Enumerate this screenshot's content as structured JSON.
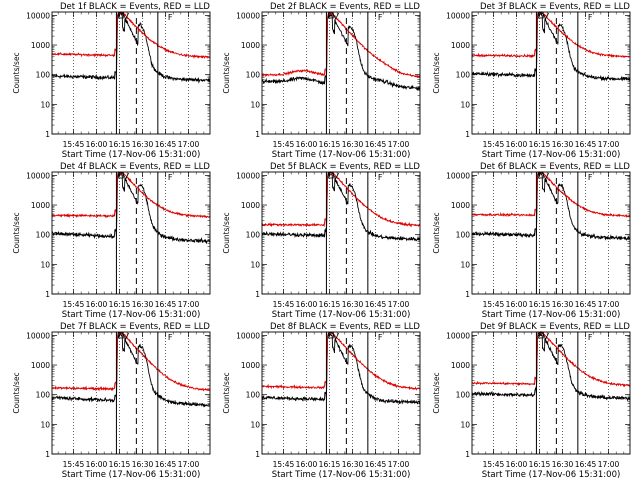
{
  "chart_data": {
    "type": "line",
    "common": {
      "xlabel": "Start Time (17-Nov-06 15:31:00)",
      "ylabel": "Counts/sec",
      "x_ticks": [
        "15:45",
        "16:00",
        "16:15",
        "16:30",
        "16:45",
        "17:00"
      ],
      "y_ticks": [
        "1",
        "10",
        "100",
        "1000",
        "10000"
      ],
      "xlim": [
        "15:31",
        "17:14"
      ],
      "ylim": [
        1,
        13000
      ],
      "yscale": "log",
      "grid": "dotted vertical lines at x ticks",
      "markers": {
        "solid_lines": [
          "16:13",
          "16:40"
        ],
        "dashed_line": "16:26",
        "annotation": "F"
      },
      "colors": {
        "events": "#000000",
        "lld": "#dd0000"
      }
    },
    "panels": [
      {
        "title": "Det 1f  BLACK = Events, RED = LLD",
        "series": [
          {
            "name": "Events",
            "baseline_start": 90,
            "baseline_end": 65,
            "peak": 11000,
            "bump": 0
          },
          {
            "name": "LLD",
            "baseline_start": 500,
            "baseline_end": 380,
            "peak": 12500,
            "bump": 0
          }
        ]
      },
      {
        "title": "Det 2f  BLACK = Events, RED = LLD",
        "series": [
          {
            "name": "Events",
            "baseline_start": 60,
            "baseline_end": 35,
            "peak": 10000,
            "bump": 0.45
          },
          {
            "name": "LLD",
            "baseline_start": 100,
            "baseline_end": 80,
            "peak": 11500,
            "bump": 0.45
          }
        ]
      },
      {
        "title": "Det 3f  BLACK = Events, RED = LLD",
        "series": [
          {
            "name": "Events",
            "baseline_start": 110,
            "baseline_end": 70,
            "peak": 11000,
            "bump": 0
          },
          {
            "name": "LLD",
            "baseline_start": 450,
            "baseline_end": 400,
            "peak": 12500,
            "bump": 0
          }
        ]
      },
      {
        "title": "Det 4f  BLACK = Events, RED = LLD",
        "series": [
          {
            "name": "Events",
            "baseline_start": 110,
            "baseline_end": 60,
            "peak": 11000,
            "bump": 0
          },
          {
            "name": "LLD",
            "baseline_start": 450,
            "baseline_end": 400,
            "peak": 12500,
            "bump": 0
          }
        ]
      },
      {
        "title": "Det 5f  BLACK = Events, RED = LLD",
        "series": [
          {
            "name": "Events",
            "baseline_start": 110,
            "baseline_end": 70,
            "peak": 11000,
            "bump": 0
          },
          {
            "name": "LLD",
            "baseline_start": 220,
            "baseline_end": 200,
            "peak": 12500,
            "bump": 0
          }
        ]
      },
      {
        "title": "Det 6f  BLACK = Events, RED = LLD",
        "series": [
          {
            "name": "Events",
            "baseline_start": 110,
            "baseline_end": 75,
            "peak": 11000,
            "bump": 0
          },
          {
            "name": "LLD",
            "baseline_start": 480,
            "baseline_end": 420,
            "peak": 12500,
            "bump": 0
          }
        ]
      },
      {
        "title": "Det 7f  BLACK = Events, RED = LLD",
        "series": [
          {
            "name": "Events",
            "baseline_start": 80,
            "baseline_end": 45,
            "peak": 10500,
            "bump": 0
          },
          {
            "name": "LLD",
            "baseline_start": 170,
            "baseline_end": 140,
            "peak": 12000,
            "bump": 0
          }
        ]
      },
      {
        "title": "Det 8f  BLACK = Events, RED = LLD",
        "series": [
          {
            "name": "Events",
            "baseline_start": 80,
            "baseline_end": 55,
            "peak": 10500,
            "bump": 0
          },
          {
            "name": "LLD",
            "baseline_start": 190,
            "baseline_end": 150,
            "peak": 12000,
            "bump": 0
          }
        ]
      },
      {
        "title": "Det 9f  BLACK = Events, RED = LLD",
        "series": [
          {
            "name": "Events",
            "baseline_start": 110,
            "baseline_end": 75,
            "peak": 11000,
            "bump": 0
          },
          {
            "name": "LLD",
            "baseline_start": 250,
            "baseline_end": 200,
            "peak": 12500,
            "bump": 0
          }
        ]
      }
    ]
  }
}
